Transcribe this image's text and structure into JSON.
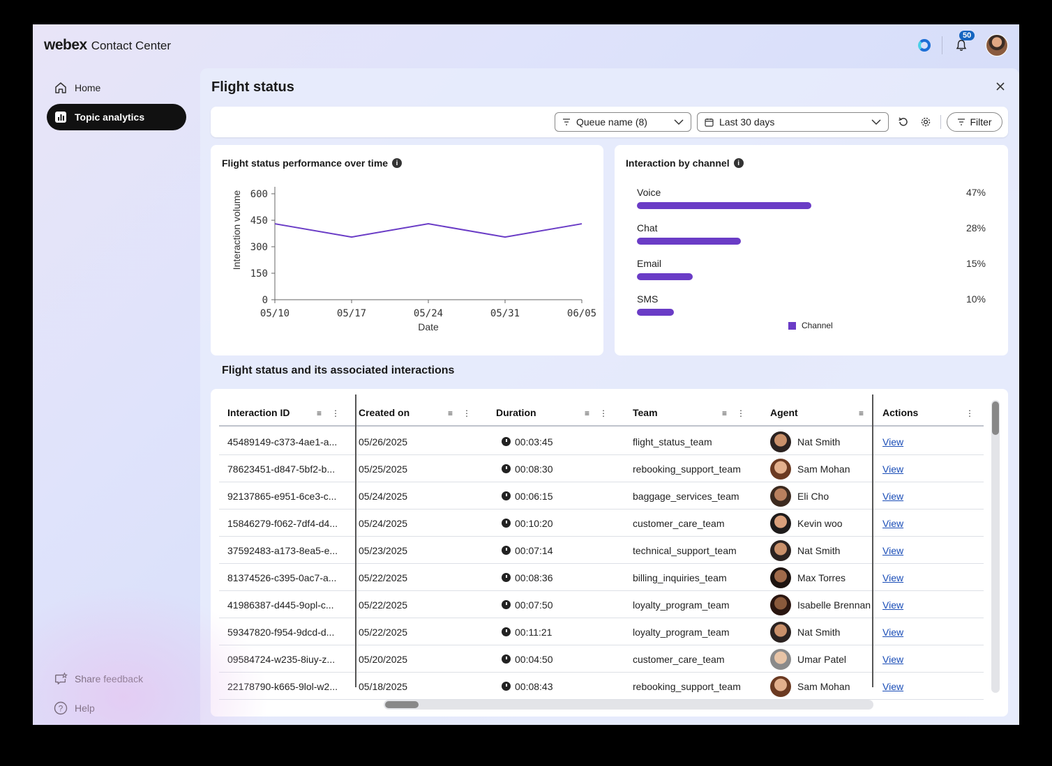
{
  "brand": {
    "name": "webex",
    "product": "Contact Center"
  },
  "header": {
    "notification_count": "50"
  },
  "sidebar": {
    "items": [
      {
        "label": "Home"
      },
      {
        "label": "Topic analytics"
      }
    ],
    "bottom": [
      {
        "label": "Share feedback"
      },
      {
        "label": "Help"
      }
    ]
  },
  "panel": {
    "title": "Flight status"
  },
  "toolbar": {
    "queue_select": "Queue name (8)",
    "date_select": "Last 30 days",
    "filter_label": "Filter"
  },
  "line_card": {
    "title": "Flight status performance over time"
  },
  "channel_card": {
    "title": "Interaction by channel"
  },
  "chart_data": [
    {
      "type": "line",
      "title": "Flight status performance over time",
      "xlabel": "Date",
      "ylabel": "Interaction volume",
      "x": [
        "05/10",
        "05/17",
        "05/24",
        "05/31",
        "06/05"
      ],
      "values": [
        430,
        355,
        430,
        355,
        430
      ],
      "ylim": [
        0,
        600
      ],
      "yticks": [
        0,
        150,
        300,
        450,
        600
      ],
      "grid": false,
      "color": "#6a3cc6"
    },
    {
      "type": "bar",
      "title": "Interaction by channel",
      "categories": [
        "Voice",
        "Chat",
        "Email",
        "SMS"
      ],
      "values": [
        47,
        28,
        15,
        10
      ],
      "labels": [
        "47%",
        "28%",
        "15%",
        "10%"
      ],
      "legend": [
        "Channel"
      ],
      "orientation": "horizontal",
      "color": "#6a3cc6"
    }
  ],
  "table": {
    "section_title": "Flight status and its associated interactions",
    "columns": [
      "Interaction ID",
      "Created on",
      "Duration",
      "Team",
      "Agent",
      "Actions"
    ],
    "rows": [
      {
        "id": "45489149-c373-4ae1-a...",
        "created": "05/26/2025",
        "duration": "00:03:45",
        "team": "flight_status_team",
        "agent": "Nat Smith",
        "action": "View"
      },
      {
        "id": "78623451-d847-5bf2-b...",
        "created": "05/25/2025",
        "duration": "00:08:30",
        "team": "rebooking_support_team",
        "agent": "Sam Mohan",
        "action": "View"
      },
      {
        "id": "92137865-e951-6ce3-c...",
        "created": "05/24/2025",
        "duration": "00:06:15",
        "team": "baggage_services_team",
        "agent": "Eli Cho",
        "action": "View"
      },
      {
        "id": "15846279-f062-7df4-d4...",
        "created": "05/24/2025",
        "duration": "00:10:20",
        "team": "customer_care_team",
        "agent": "Kevin woo",
        "action": "View"
      },
      {
        "id": "37592483-a173-8ea5-e...",
        "created": "05/23/2025",
        "duration": "00:07:14",
        "team": "technical_support_team",
        "agent": "Nat Smith",
        "action": "View"
      },
      {
        "id": "81374526-c395-0ac7-a...",
        "created": "05/22/2025",
        "duration": "00:08:36",
        "team": "billing_inquiries_team",
        "agent": "Max Torres",
        "action": "View"
      },
      {
        "id": "41986387-d445-9opl-c...",
        "created": "05/22/2025",
        "duration": "00:07:50",
        "team": "loyalty_program_team",
        "agent": "Isabelle Brennan",
        "action": "View"
      },
      {
        "id": "59347820-f954-9dcd-d...",
        "created": "05/22/2025",
        "duration": "00:11:21",
        "team": "loyalty_program_team",
        "agent": "Nat Smith",
        "action": "View"
      },
      {
        "id": "09584724-w235-8iuy-z...",
        "created": "05/20/2025",
        "duration": "00:04:50",
        "team": "customer_care_team",
        "agent": "Umar Patel",
        "action": "View"
      },
      {
        "id": "22178790-k665-9lol-w2...",
        "created": "05/18/2025",
        "duration": "00:08:43",
        "team": "rebooking_support_team",
        "agent": "Sam Mohan",
        "action": "View"
      }
    ]
  }
}
